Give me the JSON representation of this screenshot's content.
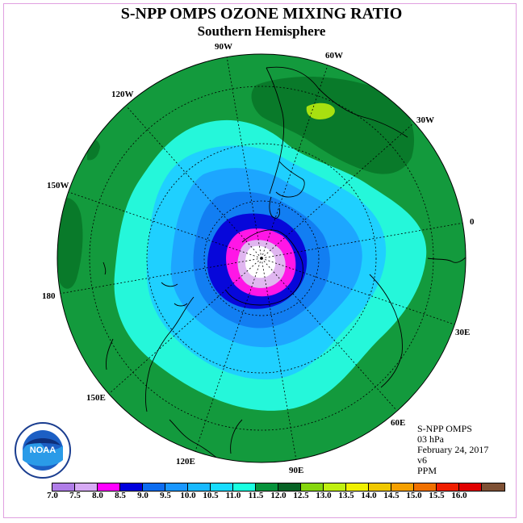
{
  "title": "S-NPP OMPS OZONE MIXING RATIO",
  "subtitle": "Southern Hemisphere",
  "longitude_labels": [
    "90W",
    "60W",
    "30W",
    "0",
    "30E",
    "60E",
    "90E",
    "120E",
    "150E",
    "180",
    "150W",
    "120W"
  ],
  "info": {
    "instrument": "S-NPP OMPS",
    "level": "03 hPa",
    "date": "February 24, 2017",
    "version": "v6",
    "units": "PPM"
  },
  "logo": {
    "text": "NOAA",
    "icon": "noaa-logo-icon"
  },
  "colorbar": {
    "ticks": [
      "7.0",
      "7.5",
      "8.0",
      "8.5",
      "9.0",
      "9.5",
      "10.0",
      "10.5",
      "11.0",
      "11.5",
      "12.0",
      "12.5",
      "13.0",
      "13.5",
      "14.0",
      "14.5",
      "15.0",
      "15.5",
      "16.0"
    ],
    "colors": [
      "#b07de8",
      "#d7aaf5",
      "#ff00ff",
      "#0000dd",
      "#0c6cf0",
      "#1a97ff",
      "#18b9ff",
      "#18dcff",
      "#1affe0",
      "#06933b",
      "#086325",
      "#86d60e",
      "#c0f010",
      "#f0f000",
      "#f0c800",
      "#f5a000",
      "#f07000",
      "#f01e00",
      "#e00000",
      "#7e5034"
    ]
  },
  "field_colors": {
    "outer": "#139a3d",
    "dark_green": "#097a2a",
    "ring_11": "#25f7da",
    "ring_10_5": "#1fd0ff",
    "ring_10": "#1da6ff",
    "ring_9_5": "#127ef2",
    "ring_9": "#0707da",
    "ring_8_5": "#ff16e6",
    "ring_8": "#e0b6f0",
    "center": "#ffffff",
    "high": "#a8e010"
  }
}
